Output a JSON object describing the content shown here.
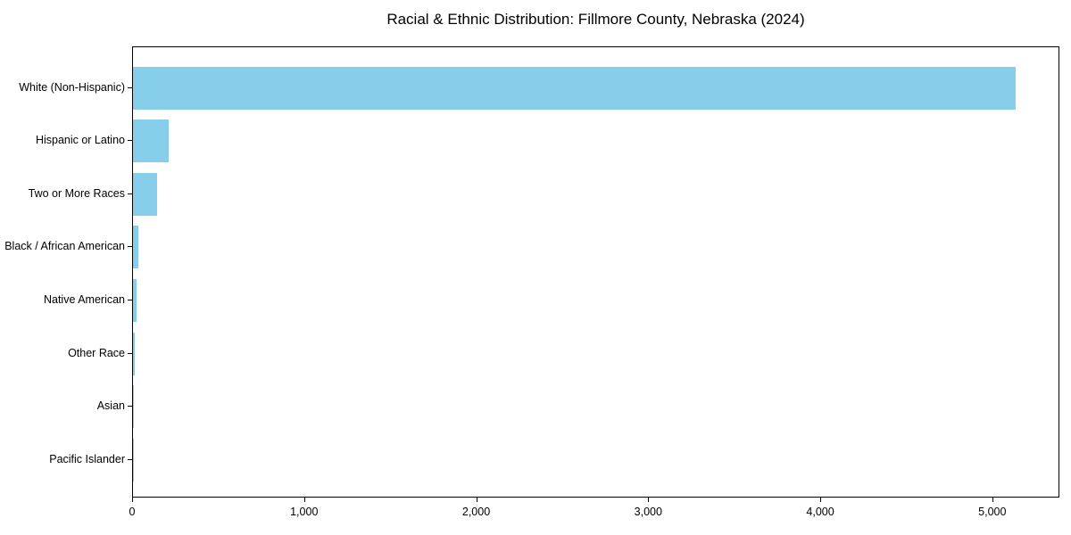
{
  "chart_data": {
    "type": "bar",
    "orientation": "horizontal",
    "title": "Racial & Ethnic Distribution: Fillmore County, Nebraska (2024)",
    "categories": [
      "White (Non-Hispanic)",
      "Hispanic or Latino",
      "Two or More Races",
      "Black / African American",
      "Native American",
      "Other Race",
      "Asian",
      "Pacific Islander"
    ],
    "values": [
      5130,
      205,
      140,
      33,
      21,
      8,
      5,
      1
    ],
    "xlabel": "",
    "ylabel": "",
    "xlim": [
      0,
      5390
    ],
    "x_ticks": [
      0,
      1000,
      2000,
      3000,
      4000,
      5000
    ],
    "x_tick_labels": [
      "0",
      "1,000",
      "2,000",
      "3,000",
      "4,000",
      "5,000"
    ],
    "bar_color": "#87ceeb",
    "grid": false,
    "legend": false,
    "axis_color": "#000000",
    "background_color": "#ffffff"
  }
}
